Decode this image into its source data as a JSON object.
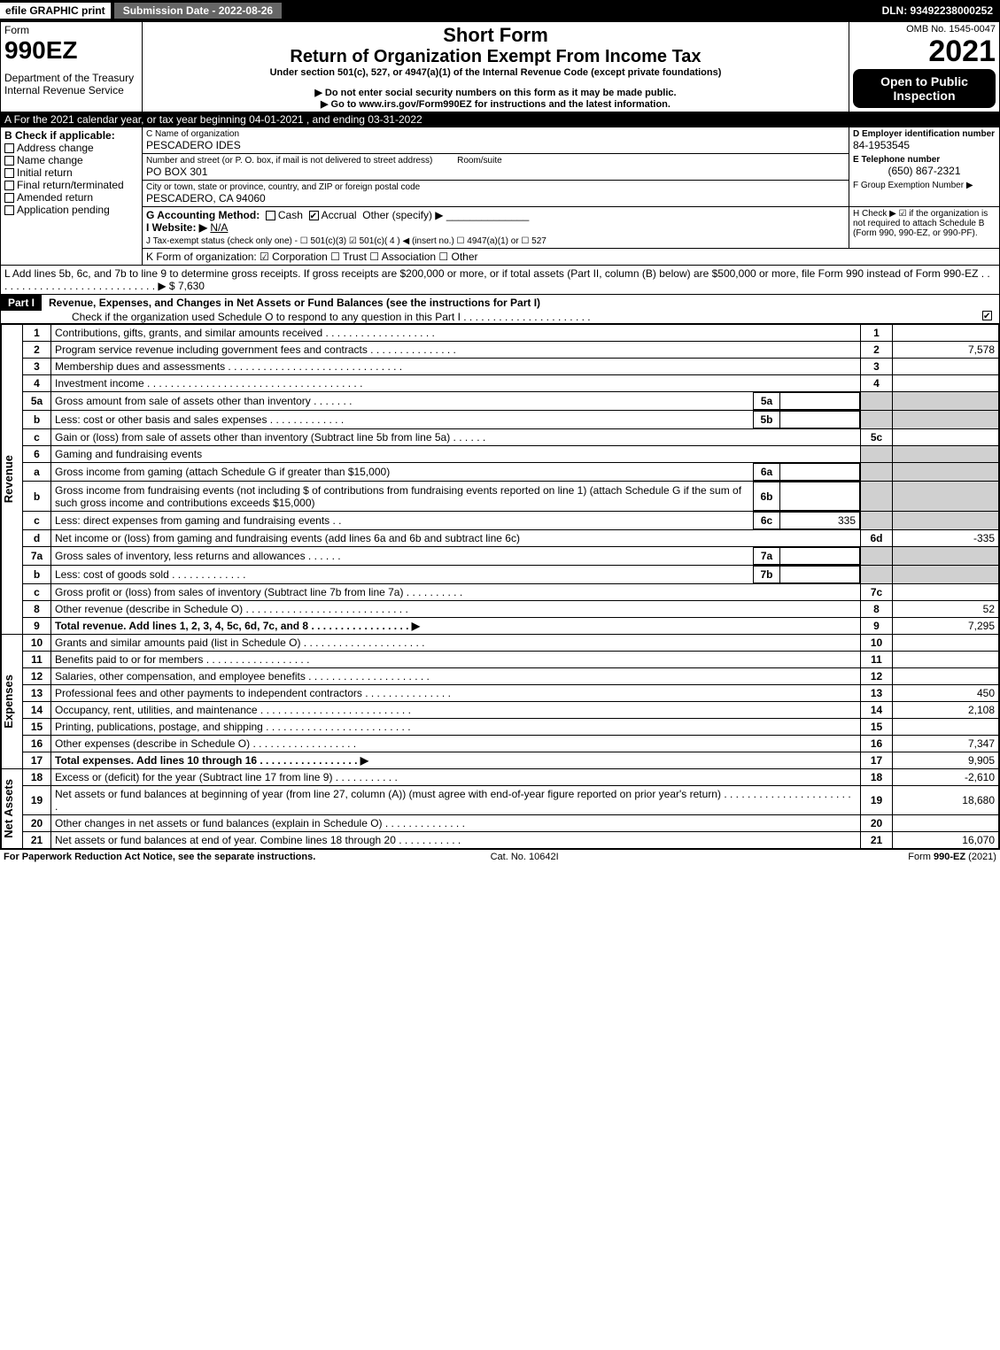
{
  "topbar": {
    "efile": "efile GRAPHIC print",
    "submission": "Submission Date - 2022-08-26",
    "dln": "DLN: 93492238000252"
  },
  "header": {
    "form_word": "Form",
    "form_num": "990EZ",
    "dept": "Department of the Treasury\nInternal Revenue Service",
    "short_form": "Short Form",
    "title": "Return of Organization Exempt From Income Tax",
    "under": "Under section 501(c), 527, or 4947(a)(1) of the Internal Revenue Code (except private foundations)",
    "no_ssn": "▶ Do not enter social security numbers on this form as it may be made public.",
    "goto": "▶ Go to www.irs.gov/Form990EZ for instructions and the latest information.",
    "omb": "OMB No. 1545-0047",
    "year": "2021",
    "open_to": "Open to Public Inspection"
  },
  "A": {
    "label": "A  For the 2021 calendar year, or tax year beginning 04-01-2021 , and ending 03-31-2022"
  },
  "B": {
    "header": "B  Check if applicable:",
    "items": [
      {
        "label": "Address change",
        "checked": false
      },
      {
        "label": "Name change",
        "checked": false
      },
      {
        "label": "Initial return",
        "checked": false
      },
      {
        "label": "Final return/terminated",
        "checked": false
      },
      {
        "label": "Amended return",
        "checked": false
      },
      {
        "label": "Application pending",
        "checked": false
      }
    ]
  },
  "C": {
    "name_label": "C Name of organization",
    "name": "PESCADERO IDES",
    "street_label": "Number and street (or P. O. box, if mail is not delivered to street address)",
    "street": "PO BOX 301",
    "room_label": "Room/suite",
    "city_label": "City or town, state or province, country, and ZIP or foreign postal code",
    "city": "PESCADERO, CA  94060"
  },
  "D": {
    "label": "D Employer identification number",
    "value": "84-1953545"
  },
  "E": {
    "label": "E Telephone number",
    "value": "(650) 867-2321"
  },
  "F": {
    "label": "F Group Exemption Number    ▶",
    "value": ""
  },
  "G": {
    "label": "G Accounting Method:",
    "cash": "Cash",
    "accrual": "Accrual",
    "other": "Other (specify) ▶",
    "accrual_checked": true
  },
  "H": {
    "label": "H   Check ▶ ☑ if the organization is not required to attach Schedule B (Form 990, 990-EZ, or 990-PF)."
  },
  "I": {
    "label": "I Website: ▶",
    "value": "N/A"
  },
  "J": {
    "label": "J Tax-exempt status (check only one) - ☐ 501(c)(3) ☑ 501(c)( 4 ) ◀ (insert no.) ☐ 4947(a)(1) or ☐ 527"
  },
  "K": {
    "label": "K Form of organization:   ☑ Corporation   ☐ Trust   ☐ Association   ☐ Other"
  },
  "L": {
    "label": "L Add lines 5b, 6c, and 7b to line 9 to determine gross receipts. If gross receipts are $200,000 or more, or if total assets (Part II, column (B) below) are $500,000 or more, file Form 990 instead of Form 990-EZ  . . . . . . . . . . . . . . . . . . . . . . . . . . . . ▶ $ 7,630"
  },
  "part1": {
    "header_badge": "Part I",
    "header_text": "Revenue, Expenses, and Changes in Net Assets or Fund Balances (see the instructions for Part I)",
    "schedO": "Check if the organization used Schedule O to respond to any question in this Part I  . . . . . . . . . . . . . . . . . . . . . .",
    "schedO_checked": true
  },
  "revenue_label": "Revenue",
  "expenses_label": "Expenses",
  "netassets_label": "Net Assets",
  "lines": {
    "1": {
      "n": "1",
      "desc": "Contributions, gifts, grants, and similar amounts received  . . . . . . . . . . . . . . . . . . .",
      "box": "1",
      "amt": ""
    },
    "2": {
      "n": "2",
      "desc": "Program service revenue including government fees and contracts  . . . . . . . . . . . . . . .",
      "box": "2",
      "amt": "7,578"
    },
    "3": {
      "n": "3",
      "desc": "Membership dues and assessments  . . . . . . . . . . . . . . . . . . . . . . . . . . . . . .",
      "box": "3",
      "amt": ""
    },
    "4": {
      "n": "4",
      "desc": "Investment income  . . . . . . . . . . . . . . . . . . . . . . . . . . . . . . . . . . . . .",
      "box": "4",
      "amt": ""
    },
    "5a": {
      "n": "5a",
      "desc": "Gross amount from sale of assets other than inventory  . . . . . . .",
      "inbox": "5a",
      "inamt": ""
    },
    "5b": {
      "n": "b",
      "desc": "Less: cost or other basis and sales expenses  . . . . . . . . . . . . .",
      "inbox": "5b",
      "inamt": ""
    },
    "5c": {
      "n": "c",
      "desc": "Gain or (loss) from sale of assets other than inventory (Subtract line 5b from line 5a)   . . . . . .",
      "box": "5c",
      "amt": ""
    },
    "6": {
      "n": "6",
      "desc": "Gaming and fundraising events"
    },
    "6a": {
      "n": "a",
      "desc": "Gross income from gaming (attach Schedule G if greater than $15,000)",
      "inbox": "6a",
      "inamt": ""
    },
    "6b": {
      "n": "b",
      "desc": "Gross income from fundraising events (not including $             of contributions from fundraising events reported on line 1) (attach Schedule G if the sum of such gross income and contributions exceeds $15,000)",
      "inbox": "6b",
      "inamt": ""
    },
    "6c": {
      "n": "c",
      "desc": "Less: direct expenses from gaming and fundraising events      .   .",
      "inbox": "6c",
      "inamt": "335"
    },
    "6d": {
      "n": "d",
      "desc": "Net income or (loss) from gaming and fundraising events (add lines 6a and 6b and subtract line 6c)",
      "box": "6d",
      "amt": "-335"
    },
    "7a": {
      "n": "7a",
      "desc": "Gross sales of inventory, less returns and allowances  . . . . . .",
      "inbox": "7a",
      "inamt": ""
    },
    "7b": {
      "n": "b",
      "desc": "Less: cost of goods sold        .   .   .   .   .   .   .   .   .   .   .   .   .",
      "inbox": "7b",
      "inamt": ""
    },
    "7c": {
      "n": "c",
      "desc": "Gross profit or (loss) from sales of inventory (Subtract line 7b from line 7a)   . . . . . . . . . .",
      "box": "7c",
      "amt": ""
    },
    "8": {
      "n": "8",
      "desc": "Other revenue (describe in Schedule O)  . . . . . . . . . . . . . . . . . . . . . . . . . . . .",
      "box": "8",
      "amt": "52"
    },
    "9": {
      "n": "9",
      "desc": "Total revenue. Add lines 1, 2, 3, 4, 5c, 6d, 7c, and 8   . . . . . . . . . . . . . . . . .   ▶",
      "box": "9",
      "amt": "7,295",
      "bold": true
    },
    "10": {
      "n": "10",
      "desc": "Grants and similar amounts paid (list in Schedule O)  . . . . . . . . . . . . . . . . . . . . .",
      "box": "10",
      "amt": ""
    },
    "11": {
      "n": "11",
      "desc": "Benefits paid to or for members      .   .   .   .   .   .   .   .   .   .   .   .   .   .   .   .   .   .",
      "box": "11",
      "amt": ""
    },
    "12": {
      "n": "12",
      "desc": "Salaries, other compensation, and employee benefits . . . . . . . . . . . . . . . . . . . . .",
      "box": "12",
      "amt": ""
    },
    "13": {
      "n": "13",
      "desc": "Professional fees and other payments to independent contractors  . . . . . . . . . . . . . . .",
      "box": "13",
      "amt": "450"
    },
    "14": {
      "n": "14",
      "desc": "Occupancy, rent, utilities, and maintenance . . . . . . . . . . . . . . . . . . . . . . . . . .",
      "box": "14",
      "amt": "2,108"
    },
    "15": {
      "n": "15",
      "desc": "Printing, publications, postage, and shipping .  . . . . . . . . . . . . . . . . . . . . . . . .",
      "box": "15",
      "amt": ""
    },
    "16": {
      "n": "16",
      "desc": "Other expenses (describe in Schedule O)     .   .   .   .   .   .   .   .   .   .   .   .   .   .   .   .   .   .",
      "box": "16",
      "amt": "7,347"
    },
    "17": {
      "n": "17",
      "desc": "Total expenses. Add lines 10 through 16       .   .   .   .   .   .   .   .   .   .   .   .   .   .   .   .   .   ▶",
      "box": "17",
      "amt": "9,905",
      "bold": true
    },
    "18": {
      "n": "18",
      "desc": "Excess or (deficit) for the year (Subtract line 17 from line 9)       .   .   .   .   .   .   .   .   .   .   .",
      "box": "18",
      "amt": "-2,610"
    },
    "19": {
      "n": "19",
      "desc": "Net assets or fund balances at beginning of year (from line 27, column (A)) (must agree with end-of-year figure reported on prior year's return) .  . . . . . . . . . . . . . . . . . . . . . .",
      "box": "19",
      "amt": "18,680"
    },
    "20": {
      "n": "20",
      "desc": "Other changes in net assets or fund balances (explain in Schedule O) . . . . . . . . . . . . . .",
      "box": "20",
      "amt": ""
    },
    "21": {
      "n": "21",
      "desc": "Net assets or fund balances at end of year. Combine lines 18 through 20 .  . . . . . . . . . .",
      "box": "21",
      "amt": "16,070"
    }
  },
  "footer": {
    "left": "For Paperwork Reduction Act Notice, see the separate instructions.",
    "mid": "Cat. No. 10642I",
    "right": "Form 990-EZ (2021)"
  }
}
